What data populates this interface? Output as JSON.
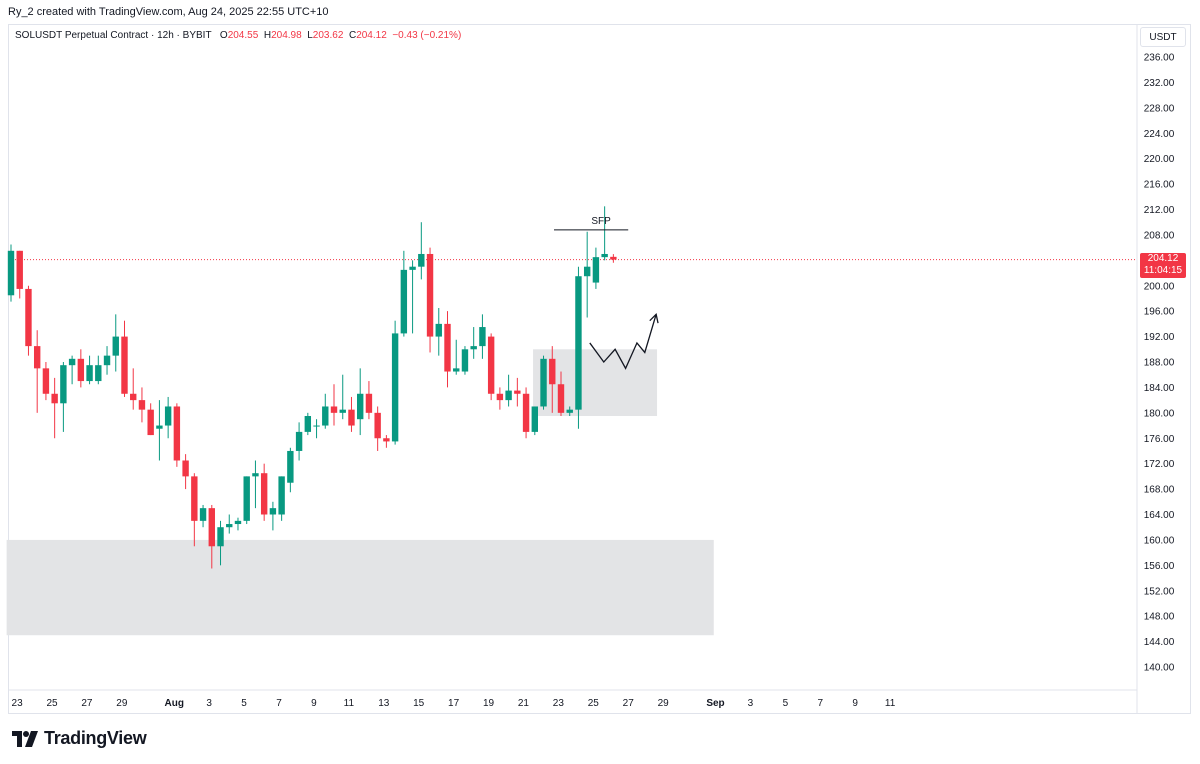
{
  "header": {
    "caption": "Ry_2 created with TradingView.com, Aug 24, 2025 22:55 UTC+10"
  },
  "legend": {
    "symbol": "SOLUSDT Perpetual Contract · 12h · BYBIT",
    "o_label": "O",
    "o_value": "204.55",
    "h_label": "H",
    "h_value": "204.98",
    "l_label": "L",
    "l_value": "203.62",
    "c_label": "C",
    "c_value": "204.12",
    "change": "−0.43 (−0.21%)"
  },
  "price_axis": {
    "unit": "USDT"
  },
  "last_price": {
    "value": "204.12",
    "countdown": "11:04:15"
  },
  "brand": {
    "name": "TradingView"
  },
  "colors": {
    "up": "#089981",
    "down": "#f23645",
    "zone": "#e3e4e6",
    "grid": "#e0e3eb"
  },
  "chart_data": {
    "type": "candlestick",
    "interval": "12h",
    "ylim": [
      137,
      238
    ],
    "y_ticks": [
      "236.00",
      "232.00",
      "228.00",
      "224.00",
      "220.00",
      "216.00",
      "212.00",
      "208.00",
      "204.00",
      "200.00",
      "196.00",
      "192.00",
      "188.00",
      "184.00",
      "180.00",
      "176.00",
      "172.00",
      "168.00",
      "164.00",
      "160.00",
      "156.00",
      "152.00",
      "148.00",
      "144.00",
      "140.00"
    ],
    "x_ticks": [
      {
        "label": "23",
        "bar": 0.7
      },
      {
        "label": "25",
        "bar": 4.7
      },
      {
        "label": "27",
        "bar": 8.7
      },
      {
        "label": "29",
        "bar": 12.7
      },
      {
        "label": "Aug",
        "bar": 18.7
      },
      {
        "label": "3",
        "bar": 22.7
      },
      {
        "label": "5",
        "bar": 26.7
      },
      {
        "label": "7",
        "bar": 30.7
      },
      {
        "label": "9",
        "bar": 34.7
      },
      {
        "label": "11",
        "bar": 38.7
      },
      {
        "label": "13",
        "bar": 42.7
      },
      {
        "label": "15",
        "bar": 46.7
      },
      {
        "label": "17",
        "bar": 50.7
      },
      {
        "label": "19",
        "bar": 54.7
      },
      {
        "label": "21",
        "bar": 58.7
      },
      {
        "label": "23",
        "bar": 62.7
      },
      {
        "label": "25",
        "bar": 66.7
      },
      {
        "label": "27",
        "bar": 70.7
      },
      {
        "label": "29",
        "bar": 74.7
      },
      {
        "label": "Sep",
        "bar": 80.7
      },
      {
        "label": "3",
        "bar": 84.7
      },
      {
        "label": "5",
        "bar": 88.7
      },
      {
        "label": "7",
        "bar": 92.7
      },
      {
        "label": "9",
        "bar": 96.7
      },
      {
        "label": "11",
        "bar": 100.7
      }
    ],
    "candles": [
      {
        "o": 198.5,
        "h": 206.5,
        "l": 197.5,
        "c": 205.5
      },
      {
        "o": 205.5,
        "h": 205.5,
        "l": 198.0,
        "c": 199.5
      },
      {
        "o": 199.5,
        "h": 200.0,
        "l": 189.0,
        "c": 190.5
      },
      {
        "o": 190.5,
        "h": 193.0,
        "l": 180.0,
        "c": 187.0
      },
      {
        "o": 187.0,
        "h": 188.0,
        "l": 182.0,
        "c": 183.0
      },
      {
        "o": 183.0,
        "h": 185.5,
        "l": 176.0,
        "c": 181.5
      },
      {
        "o": 181.5,
        "h": 188.0,
        "l": 177.0,
        "c": 187.5
      },
      {
        "o": 187.5,
        "h": 189.0,
        "l": 184.5,
        "c": 188.5
      },
      {
        "o": 188.5,
        "h": 190.0,
        "l": 184.0,
        "c": 185.0
      },
      {
        "o": 185.0,
        "h": 189.0,
        "l": 184.5,
        "c": 187.5
      },
      {
        "o": 185.0,
        "h": 189.0,
        "l": 184.5,
        "c": 187.5
      },
      {
        "o": 187.5,
        "h": 190.5,
        "l": 186.0,
        "c": 189.0
      },
      {
        "o": 189.0,
        "h": 195.5,
        "l": 186.5,
        "c": 192.0
      },
      {
        "o": 192.0,
        "h": 194.5,
        "l": 182.5,
        "c": 183.0
      },
      {
        "o": 183.0,
        "h": 187.0,
        "l": 180.5,
        "c": 182.0
      },
      {
        "o": 182.0,
        "h": 184.0,
        "l": 178.5,
        "c": 180.5
      },
      {
        "o": 180.5,
        "h": 181.5,
        "l": 176.5,
        "c": 176.5
      },
      {
        "o": 177.5,
        "h": 182.0,
        "l": 172.5,
        "c": 178.0
      },
      {
        "o": 178.0,
        "h": 182.5,
        "l": 176.0,
        "c": 181.0
      },
      {
        "o": 181.0,
        "h": 181.5,
        "l": 171.5,
        "c": 172.5
      },
      {
        "o": 172.5,
        "h": 173.5,
        "l": 168.0,
        "c": 170.0
      },
      {
        "o": 170.0,
        "h": 170.5,
        "l": 159.0,
        "c": 163.0
      },
      {
        "o": 163.0,
        "h": 165.5,
        "l": 162.0,
        "c": 165.0
      },
      {
        "o": 165.0,
        "h": 165.5,
        "l": 155.5,
        "c": 159.0
      },
      {
        "o": 159.0,
        "h": 163.0,
        "l": 156.0,
        "c": 162.0
      },
      {
        "o": 162.0,
        "h": 164.0,
        "l": 161.0,
        "c": 162.5
      },
      {
        "o": 162.5,
        "h": 163.5,
        "l": 161.5,
        "c": 163.0
      },
      {
        "o": 163.0,
        "h": 170.0,
        "l": 162.5,
        "c": 170.0
      },
      {
        "o": 170.0,
        "h": 172.5,
        "l": 165.0,
        "c": 170.5
      },
      {
        "o": 170.5,
        "h": 172.0,
        "l": 163.0,
        "c": 164.0
      },
      {
        "o": 164.0,
        "h": 166.0,
        "l": 161.5,
        "c": 165.0
      },
      {
        "o": 164.0,
        "h": 170.0,
        "l": 163.0,
        "c": 170.0
      },
      {
        "o": 169.0,
        "h": 174.5,
        "l": 167.5,
        "c": 174.0
      },
      {
        "o": 174.0,
        "h": 178.5,
        "l": 172.5,
        "c": 177.0
      },
      {
        "o": 177.0,
        "h": 180.0,
        "l": 176.5,
        "c": 179.5
      },
      {
        "o": 178.0,
        "h": 179.0,
        "l": 176.0,
        "c": 178.0
      },
      {
        "o": 178.0,
        "h": 183.0,
        "l": 177.5,
        "c": 181.0
      },
      {
        "o": 181.0,
        "h": 184.5,
        "l": 178.0,
        "c": 180.0
      },
      {
        "o": 180.0,
        "h": 186.0,
        "l": 179.0,
        "c": 180.5
      },
      {
        "o": 180.5,
        "h": 182.5,
        "l": 177.0,
        "c": 178.0
      },
      {
        "o": 179.0,
        "h": 187.0,
        "l": 176.5,
        "c": 183.0
      },
      {
        "o": 183.0,
        "h": 185.0,
        "l": 179.0,
        "c": 180.0
      },
      {
        "o": 180.0,
        "h": 181.0,
        "l": 174.0,
        "c": 176.0
      },
      {
        "o": 176.0,
        "h": 176.5,
        "l": 174.5,
        "c": 175.5
      },
      {
        "o": 175.5,
        "h": 194.5,
        "l": 175.0,
        "c": 192.5
      },
      {
        "o": 192.5,
        "h": 205.5,
        "l": 192.0,
        "c": 202.5
      },
      {
        "o": 202.5,
        "h": 204.0,
        "l": 192.5,
        "c": 203.0
      },
      {
        "o": 203.0,
        "h": 210.0,
        "l": 201.0,
        "c": 205.0
      },
      {
        "o": 205.0,
        "h": 206.0,
        "l": 189.5,
        "c": 192.0
      },
      {
        "o": 192.0,
        "h": 196.5,
        "l": 189.0,
        "c": 194.0
      },
      {
        "o": 194.0,
        "h": 196.0,
        "l": 184.0,
        "c": 186.5
      },
      {
        "o": 186.5,
        "h": 191.5,
        "l": 186.0,
        "c": 187.0
      },
      {
        "o": 186.5,
        "h": 190.5,
        "l": 186.0,
        "c": 190.0
      },
      {
        "o": 190.0,
        "h": 193.5,
        "l": 188.5,
        "c": 190.5
      },
      {
        "o": 190.5,
        "h": 195.5,
        "l": 188.5,
        "c": 193.5
      },
      {
        "o": 192.0,
        "h": 192.5,
        "l": 182.0,
        "c": 183.0
      },
      {
        "o": 183.0,
        "h": 184.0,
        "l": 180.5,
        "c": 182.0
      },
      {
        "o": 182.0,
        "h": 186.0,
        "l": 181.0,
        "c": 183.5
      },
      {
        "o": 183.5,
        "h": 185.5,
        "l": 181.0,
        "c": 183.0
      },
      {
        "o": 183.0,
        "h": 184.0,
        "l": 176.0,
        "c": 177.0
      },
      {
        "o": 177.0,
        "h": 181.0,
        "l": 176.5,
        "c": 181.0
      },
      {
        "o": 181.0,
        "h": 189.0,
        "l": 180.5,
        "c": 188.5
      },
      {
        "o": 188.5,
        "h": 190.5,
        "l": 180.0,
        "c": 184.5
      },
      {
        "o": 184.5,
        "h": 186.5,
        "l": 179.5,
        "c": 180.0
      },
      {
        "o": 180.0,
        "h": 181.0,
        "l": 179.5,
        "c": 180.5
      },
      {
        "o": 180.5,
        "h": 203.0,
        "l": 177.5,
        "c": 201.5
      },
      {
        "o": 201.5,
        "h": 208.5,
        "l": 195.0,
        "c": 203.0
      },
      {
        "o": 200.5,
        "h": 206.0,
        "l": 199.5,
        "c": 204.5
      },
      {
        "o": 204.5,
        "h": 212.5,
        "l": 204.0,
        "c": 205.0
      },
      {
        "o": 204.55,
        "h": 204.98,
        "l": 203.62,
        "c": 204.12
      }
    ],
    "zones": [
      {
        "from_bar": -0.5,
        "to_bar": 80.5,
        "top": 160.0,
        "bottom": 145.0
      },
      {
        "from_bar": 59.8,
        "to_bar": 74.0,
        "top": 190.0,
        "bottom": 179.5
      }
    ],
    "annotations": [
      {
        "text": "SFP",
        "level": 208.8,
        "from_bar": 62.2,
        "to_bar": 70.7
      }
    ],
    "projection_path": [
      {
        "bar": 66.3,
        "price": 191.0
      },
      {
        "bar": 67.9,
        "price": 188.0
      },
      {
        "bar": 69.2,
        "price": 190.0
      },
      {
        "bar": 70.4,
        "price": 187.0
      },
      {
        "bar": 71.7,
        "price": 191.0
      },
      {
        "bar": 72.6,
        "price": 189.5
      },
      {
        "bar": 73.9,
        "price": 195.5
      }
    ],
    "last_price_line": 204.12
  }
}
